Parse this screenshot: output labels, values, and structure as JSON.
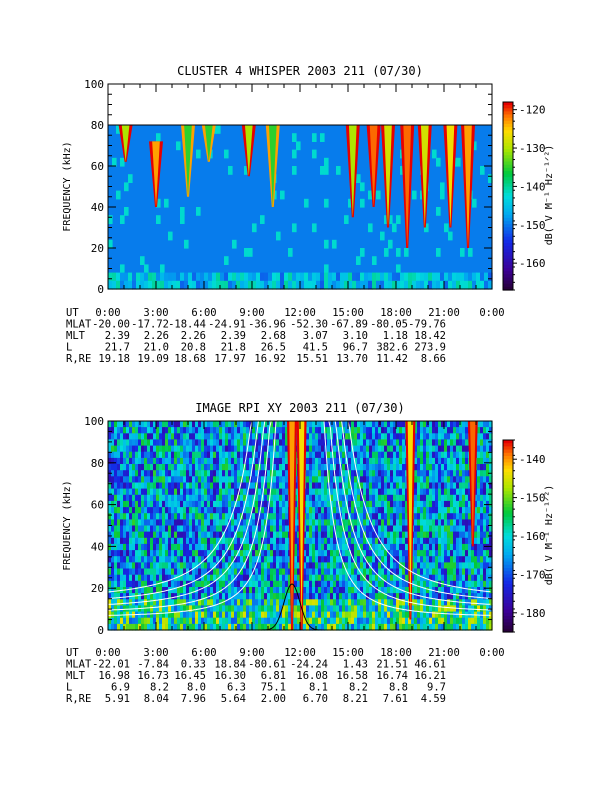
{
  "chart_data": [
    {
      "type": "heatmap",
      "title": "CLUSTER 4 WHISPER 2003 211 (07/30)",
      "ylabel": "FREQUENCY (kHz)",
      "ylim": [
        0,
        100
      ],
      "yticks": [
        "0",
        "20",
        "40",
        "60",
        "80",
        "100"
      ],
      "colorbar": {
        "label": "dB( V M⁻¹ Hz⁻¹ᐟ²)",
        "range": [
          -167,
          -118
        ],
        "ticks": [
          "-120",
          "-130",
          "-140",
          "-150",
          "-160"
        ]
      },
      "data_max_freq_khz": 80,
      "background_db": -150,
      "bursts": [
        {
          "t": 1.1,
          "top": 80,
          "bottom": 62,
          "db": -130
        },
        {
          "t": 3.0,
          "top": 72,
          "bottom": 40,
          "db": -123
        },
        {
          "t": 5.0,
          "top": 80,
          "bottom": 45,
          "db": -135
        },
        {
          "t": 6.3,
          "top": 80,
          "bottom": 62,
          "db": -135
        },
        {
          "t": 8.8,
          "top": 80,
          "bottom": 55,
          "db": -130
        },
        {
          "t": 10.3,
          "top": 80,
          "bottom": 40,
          "db": -135
        },
        {
          "t": 15.3,
          "top": 80,
          "bottom": 35,
          "db": -130
        },
        {
          "t": 16.6,
          "top": 80,
          "bottom": 40,
          "db": -121
        },
        {
          "t": 17.5,
          "top": 80,
          "bottom": 30,
          "db": -128
        },
        {
          "t": 18.7,
          "top": 80,
          "bottom": 20,
          "db": -121
        },
        {
          "t": 19.8,
          "top": 80,
          "bottom": 30,
          "db": -128
        },
        {
          "t": 21.4,
          "top": 80,
          "bottom": 30,
          "db": -126
        },
        {
          "t": 22.5,
          "top": 80,
          "bottom": 20,
          "db": -123
        }
      ],
      "ephemeris": {
        "labels": [
          "UT",
          "MLAT",
          "MLT",
          "L",
          "R,RE"
        ],
        "UT": [
          "0:00",
          "3:00",
          "6:00",
          "9:00",
          "12:00",
          "15:00",
          "18:00",
          "21:00",
          "0:00"
        ],
        "MLAT": [
          "-20.00",
          "-17.72",
          "-18.44",
          "-24.91",
          "-36.96",
          "-52.30",
          "-67.89",
          "-80.05",
          "-79.76"
        ],
        "MLT": [
          "2.39",
          "2.26",
          "2.26",
          "2.39",
          "2.68",
          "3.07",
          "3.10",
          "1.18",
          "18.42"
        ],
        "L": [
          "21.7",
          "21.0",
          "20.8",
          "21.8",
          "26.5",
          "41.5",
          "96.7",
          "382.6",
          "273.9"
        ],
        "R,RE": [
          "19.18",
          "19.09",
          "18.68",
          "17.97",
          "16.92",
          "15.51",
          "13.70",
          "11.42",
          "8.66"
        ]
      }
    },
    {
      "type": "heatmap",
      "title": "IMAGE RPI XY 2003 211 (07/30)",
      "ylabel": "FREQUENCY (kHz)",
      "ylim": [
        0,
        100
      ],
      "yticks": [
        "0",
        "20",
        "40",
        "60",
        "80",
        "100"
      ],
      "colorbar": {
        "label": "dB( V M⁻¹ Hz⁻¹ᐟ²)",
        "range": [
          -185,
          -135
        ],
        "ticks": [
          "-140",
          "-150",
          "-160",
          "-170",
          "-180"
        ]
      },
      "data_max_freq_khz": 100,
      "background_db": -165,
      "bursts": [
        {
          "t": 11.5,
          "top": 100,
          "bottom": 0,
          "db": -140
        },
        {
          "t": 12.1,
          "top": 100,
          "bottom": 0,
          "db": -143
        },
        {
          "t": 18.9,
          "top": 100,
          "bottom": 5,
          "db": -143
        },
        {
          "t": 22.8,
          "top": 100,
          "bottom": 40,
          "db": -138
        }
      ],
      "ephemeris": {
        "labels": [
          "UT",
          "MLAT",
          "MLT",
          "L",
          "R,RE"
        ],
        "UT": [
          "0:00",
          "3:00",
          "6:00",
          "9:00",
          "12:00",
          "15:00",
          "18:00",
          "21:00",
          "0:00"
        ],
        "MLAT": [
          "-22.01",
          "-7.84",
          "0.33",
          "18.84",
          "-80.61",
          "-24.24",
          "1.43",
          "21.51",
          "46.61"
        ],
        "MLT": [
          "16.98",
          "16.73",
          "16.45",
          "16.30",
          "6.81",
          "16.08",
          "16.58",
          "16.74",
          "16.21"
        ],
        "L": [
          "6.9",
          "8.2",
          "8.0",
          "6.3",
          "75.1",
          "8.1",
          "8.2",
          "8.8",
          "9.7"
        ],
        "R,RE": [
          "5.91",
          "8.04",
          "7.96",
          "5.64",
          "2.00",
          "6.70",
          "8.21",
          "7.61",
          "4.59"
        ]
      }
    }
  ]
}
